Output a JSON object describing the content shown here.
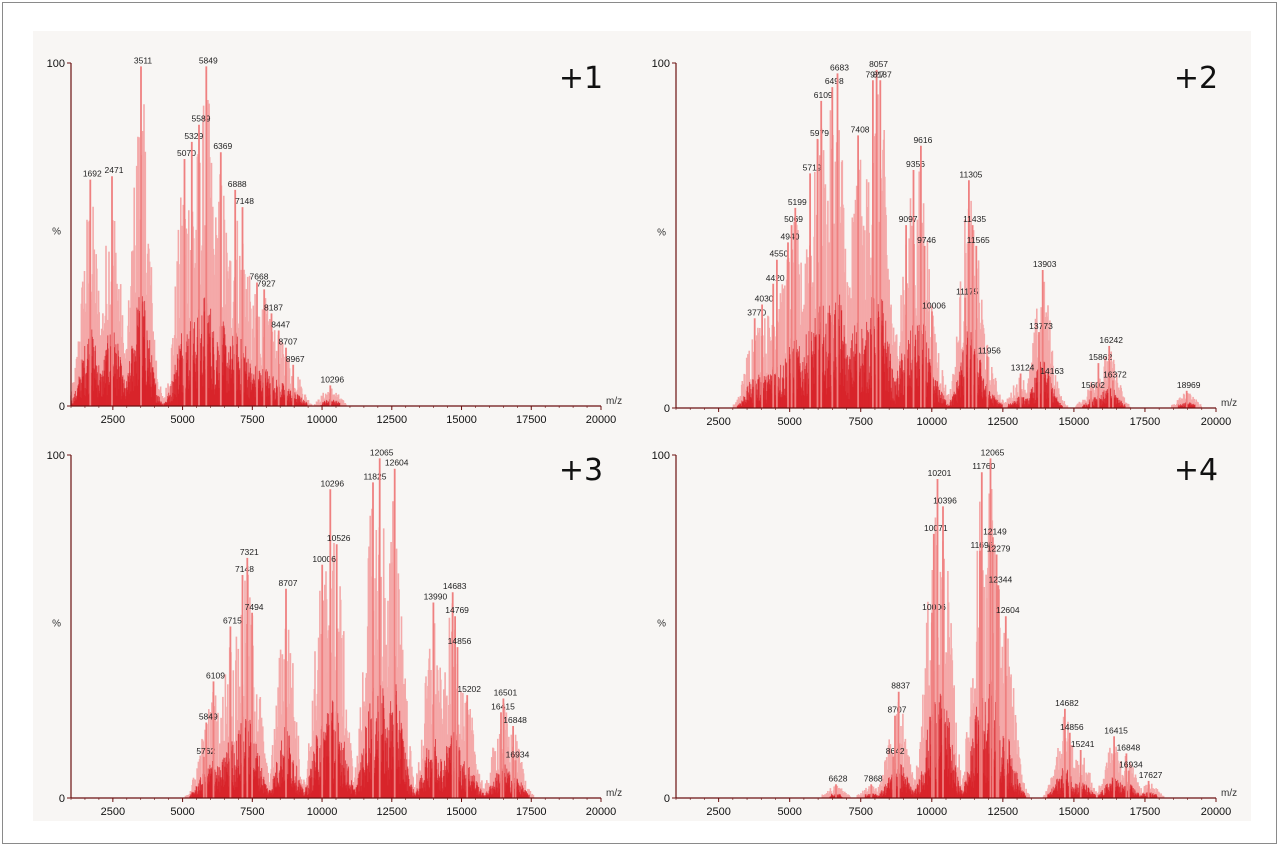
{
  "chart_data": [
    {
      "type": "bar",
      "panel_label": "+1",
      "y_axis_label": "%",
      "x_axis_label": "m/z",
      "xlim": [
        1000,
        20000
      ],
      "ylim": [
        0,
        100
      ],
      "x_ticks": [
        2500,
        5000,
        7500,
        10000,
        12500,
        15000,
        17500,
        20000
      ],
      "y_ticks": [
        0,
        100
      ],
      "peaks": [
        {
          "x": 1692,
          "y": 66,
          "label": "1692"
        },
        {
          "x": 2471,
          "y": 67,
          "label": "2471"
        },
        {
          "x": 3511,
          "y": 99,
          "label": "3511"
        },
        {
          "x": 5070,
          "y": 72,
          "label": "5070"
        },
        {
          "x": 5329,
          "y": 77,
          "label": "5329"
        },
        {
          "x": 5589,
          "y": 82,
          "label": "5589"
        },
        {
          "x": 5849,
          "y": 99,
          "label": "5849"
        },
        {
          "x": 6369,
          "y": 74,
          "label": "6369"
        },
        {
          "x": 6888,
          "y": 63,
          "label": "6888"
        },
        {
          "x": 7148,
          "y": 58,
          "label": "7148"
        },
        {
          "x": 7668,
          "y": 36,
          "label": "7668"
        },
        {
          "x": 7927,
          "y": 34,
          "label": "7927"
        },
        {
          "x": 8187,
          "y": 27,
          "label": "8187"
        },
        {
          "x": 8447,
          "y": 22,
          "label": "8447"
        },
        {
          "x": 8707,
          "y": 17,
          "label": "8707"
        },
        {
          "x": 8967,
          "y": 12,
          "label": "8967"
        },
        {
          "x": 10296,
          "y": 6,
          "label": "10296"
        }
      ]
    },
    {
      "type": "bar",
      "panel_label": "+2",
      "y_axis_label": "%",
      "x_axis_label": "m/z",
      "xlim": [
        1000,
        20000
      ],
      "ylim": [
        0,
        100
      ],
      "x_ticks": [
        2500,
        5000,
        7500,
        10000,
        12500,
        15000,
        17500,
        20000
      ],
      "y_ticks": [
        0,
        100
      ],
      "peaks": [
        {
          "x": 3770,
          "y": 26,
          "label": "3770"
        },
        {
          "x": 4030,
          "y": 30,
          "label": "4030"
        },
        {
          "x": 4420,
          "y": 36,
          "label": "4420"
        },
        {
          "x": 4550,
          "y": 43,
          "label": "4550"
        },
        {
          "x": 4940,
          "y": 48,
          "label": "4940"
        },
        {
          "x": 5069,
          "y": 53,
          "label": "5069"
        },
        {
          "x": 5199,
          "y": 58,
          "label": "5199"
        },
        {
          "x": 5719,
          "y": 68,
          "label": "5719"
        },
        {
          "x": 5979,
          "y": 78,
          "label": "5979"
        },
        {
          "x": 6109,
          "y": 89,
          "label": "6109"
        },
        {
          "x": 6498,
          "y": 93,
          "label": "6498"
        },
        {
          "x": 6683,
          "y": 97,
          "label": "6683"
        },
        {
          "x": 7927,
          "y": 95,
          "label": "7927"
        },
        {
          "x": 7408,
          "y": 79,
          "label": "7408"
        },
        {
          "x": 8057,
          "y": 98,
          "label": "8057"
        },
        {
          "x": 8187,
          "y": 95,
          "label": "8187"
        },
        {
          "x": 9356,
          "y": 69,
          "label": "9356"
        },
        {
          "x": 9616,
          "y": 76,
          "label": "9616"
        },
        {
          "x": 9097,
          "y": 53,
          "label": "9097"
        },
        {
          "x": 9746,
          "y": 47,
          "label": "9746"
        },
        {
          "x": 10006,
          "y": 28,
          "label": "10006"
        },
        {
          "x": 11175,
          "y": 32,
          "label": "11175"
        },
        {
          "x": 11305,
          "y": 66,
          "label": "11305"
        },
        {
          "x": 11435,
          "y": 53,
          "label": "11435"
        },
        {
          "x": 11565,
          "y": 47,
          "label": "11565"
        },
        {
          "x": 11956,
          "y": 15,
          "label": "11956"
        },
        {
          "x": 13124,
          "y": 10,
          "label": "13124"
        },
        {
          "x": 13773,
          "y": 22,
          "label": "13773"
        },
        {
          "x": 13903,
          "y": 40,
          "label": "13903"
        },
        {
          "x": 14163,
          "y": 9,
          "label": "14163"
        },
        {
          "x": 15602,
          "y": 5,
          "label": "15602"
        },
        {
          "x": 15862,
          "y": 13,
          "label": "15862"
        },
        {
          "x": 16242,
          "y": 18,
          "label": "16242"
        },
        {
          "x": 16372,
          "y": 8,
          "label": "16372"
        },
        {
          "x": 18969,
          "y": 5,
          "label": "18969"
        }
      ]
    },
    {
      "type": "bar",
      "panel_label": "+3",
      "y_axis_label": "%",
      "x_axis_label": "m/z",
      "xlim": [
        1000,
        20000
      ],
      "ylim": [
        0,
        100
      ],
      "x_ticks": [
        2500,
        5000,
        7500,
        10000,
        12500,
        15000,
        17500,
        20000
      ],
      "y_ticks": [
        0,
        100
      ],
      "peaks": [
        {
          "x": 5762,
          "y": 12,
          "label": "5762"
        },
        {
          "x": 5849,
          "y": 22,
          "label": "5849"
        },
        {
          "x": 6109,
          "y": 34,
          "label": "6109"
        },
        {
          "x": 6715,
          "y": 50,
          "label": "6715"
        },
        {
          "x": 7148,
          "y": 65,
          "label": "7148"
        },
        {
          "x": 7321,
          "y": 70,
          "label": "7321"
        },
        {
          "x": 7494,
          "y": 54,
          "label": "7494"
        },
        {
          "x": 8707,
          "y": 61,
          "label": "8707"
        },
        {
          "x": 10006,
          "y": 68,
          "label": "10006"
        },
        {
          "x": 10296,
          "y": 90,
          "label": "10296"
        },
        {
          "x": 10526,
          "y": 74,
          "label": "10526"
        },
        {
          "x": 11825,
          "y": 92,
          "label": "11825"
        },
        {
          "x": 12065,
          "y": 99,
          "label": "12065"
        },
        {
          "x": 12604,
          "y": 96,
          "label": "12604"
        },
        {
          "x": 13990,
          "y": 57,
          "label": "13990"
        },
        {
          "x": 14683,
          "y": 60,
          "label": "14683"
        },
        {
          "x": 14769,
          "y": 53,
          "label": "14769"
        },
        {
          "x": 14856,
          "y": 44,
          "label": "14856"
        },
        {
          "x": 15202,
          "y": 30,
          "label": "15202"
        },
        {
          "x": 16415,
          "y": 25,
          "label": "16415"
        },
        {
          "x": 16501,
          "y": 29,
          "label": "16501"
        },
        {
          "x": 16848,
          "y": 21,
          "label": "16848"
        },
        {
          "x": 16934,
          "y": 11,
          "label": "16934"
        }
      ]
    },
    {
      "type": "bar",
      "panel_label": "+4",
      "y_axis_label": "%",
      "x_axis_label": "m/z",
      "xlim": [
        1000,
        20000
      ],
      "ylim": [
        0,
        100
      ],
      "x_ticks": [
        2500,
        5000,
        7500,
        10000,
        12500,
        15000,
        17500,
        20000
      ],
      "y_ticks": [
        0,
        100
      ],
      "peaks": [
        {
          "x": 6628,
          "y": 4,
          "label": "6628"
        },
        {
          "x": 7868,
          "y": 4,
          "label": "7868"
        },
        {
          "x": 8642,
          "y": 12,
          "label": "8642"
        },
        {
          "x": 8707,
          "y": 24,
          "label": "8707"
        },
        {
          "x": 8837,
          "y": 31,
          "label": "8837"
        },
        {
          "x": 10006,
          "y": 54,
          "label": "10006"
        },
        {
          "x": 10071,
          "y": 77,
          "label": "10071"
        },
        {
          "x": 10201,
          "y": 93,
          "label": "10201"
        },
        {
          "x": 10396,
          "y": 85,
          "label": "10396"
        },
        {
          "x": 11695,
          "y": 72,
          "label": "11695"
        },
        {
          "x": 11760,
          "y": 95,
          "label": "11760"
        },
        {
          "x": 12065,
          "y": 99,
          "label": "12065"
        },
        {
          "x": 12149,
          "y": 76,
          "label": "12149"
        },
        {
          "x": 12279,
          "y": 71,
          "label": "12279"
        },
        {
          "x": 12344,
          "y": 62,
          "label": "12344"
        },
        {
          "x": 12604,
          "y": 53,
          "label": "12604"
        },
        {
          "x": 14682,
          "y": 26,
          "label": "14682"
        },
        {
          "x": 14856,
          "y": 19,
          "label": "14856"
        },
        {
          "x": 15241,
          "y": 14,
          "label": "15241"
        },
        {
          "x": 16415,
          "y": 18,
          "label": "16415"
        },
        {
          "x": 16848,
          "y": 13,
          "label": "16848"
        },
        {
          "x": 16934,
          "y": 8,
          "label": "16934"
        },
        {
          "x": 17627,
          "y": 5,
          "label": "17627"
        }
      ]
    }
  ],
  "colors": {
    "peak_light": "#f4a9a9",
    "peak_mid": "#ef8080",
    "peak_dark": "#d81f26",
    "axis": "#6b1010"
  }
}
